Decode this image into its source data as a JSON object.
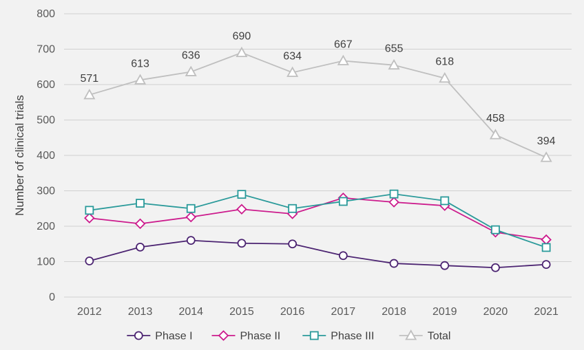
{
  "chart_data": {
    "type": "line",
    "ylabel": "Number of clinical trials",
    "ylim": [
      0,
      800
    ],
    "y_ticks": [
      "0",
      "100",
      "200",
      "300",
      "400",
      "500",
      "600",
      "700",
      "800"
    ],
    "categories": [
      "2012",
      "2013",
      "2014",
      "2015",
      "2016",
      "2017",
      "2018",
      "2019",
      "2020",
      "2021"
    ],
    "grid": "horizontal",
    "legend_position": "bottom",
    "series": [
      {
        "key": "phase-i",
        "name": "Phase I",
        "color": "#4b2371",
        "marker": "circle",
        "values": [
          102,
          141,
          160,
          152,
          150,
          117,
          95,
          89,
          83,
          92
        ]
      },
      {
        "key": "phase-ii",
        "name": "Phase II",
        "color": "#cc1a8c",
        "marker": "diamond",
        "values": [
          223,
          207,
          226,
          248,
          235,
          280,
          268,
          258,
          183,
          162
        ]
      },
      {
        "key": "phase-iii",
        "name": "Phase III",
        "color": "#2a9a9a",
        "marker": "square",
        "values": [
          245,
          265,
          250,
          290,
          250,
          270,
          291,
          272,
          190,
          140
        ]
      },
      {
        "key": "total",
        "name": "Total",
        "color": "#bfbfbf",
        "marker": "triangle",
        "values": [
          571,
          613,
          636,
          690,
          634,
          667,
          655,
          618,
          458,
          394
        ],
        "data_labels": [
          "571",
          "613",
          "636",
          "690",
          "634",
          "667",
          "655",
          "618",
          "458",
          "394"
        ]
      }
    ]
  }
}
